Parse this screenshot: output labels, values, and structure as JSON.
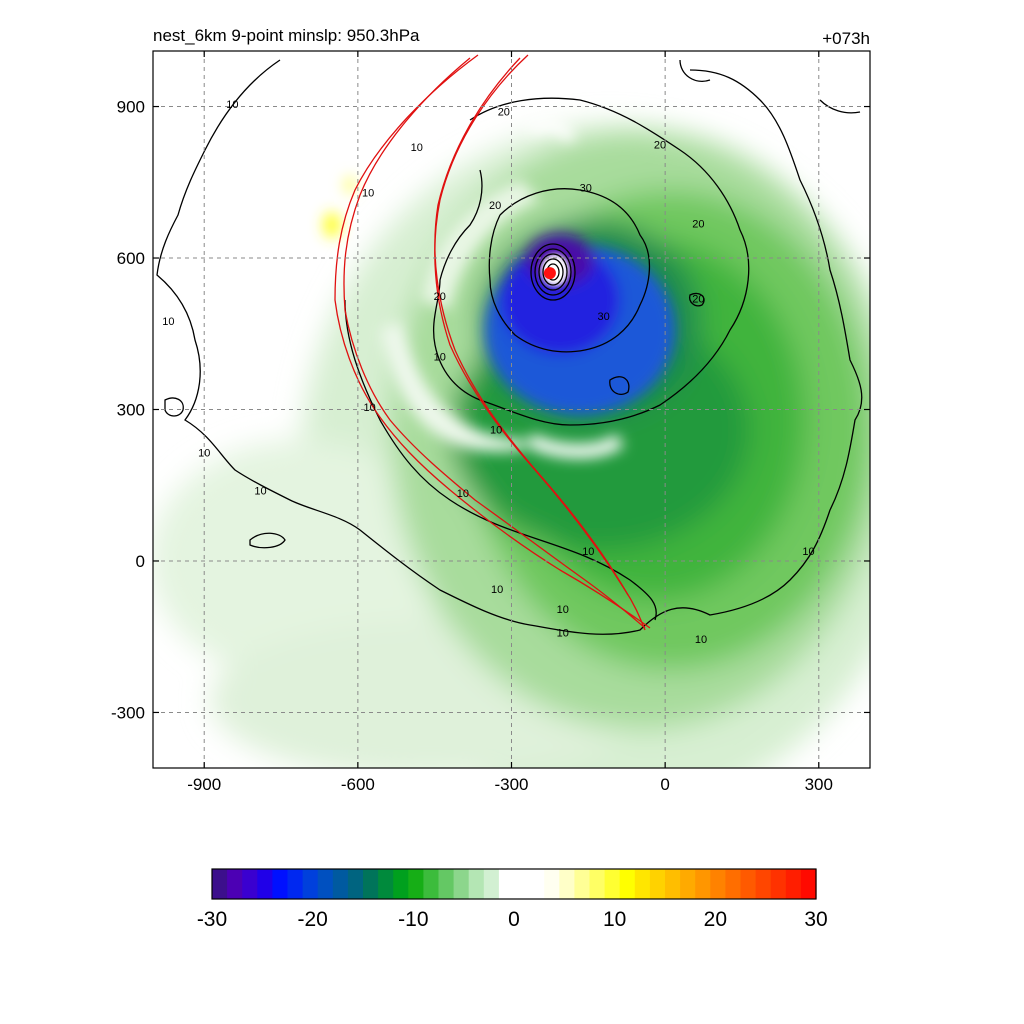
{
  "chart_data": {
    "type": "heatmap",
    "title_left": "nest_6km  9-point minslp: 950.3hPa",
    "title_right": "+073h",
    "xlim": [
      -1000,
      400
    ],
    "ylim": [
      -410,
      1010
    ],
    "x_ticks": [
      "-900",
      "-600",
      "-300",
      "0",
      "300"
    ],
    "x_tick_values": [
      -900,
      -600,
      -300,
      0,
      300
    ],
    "y_ticks": [
      "900",
      "600",
      "300",
      "0",
      "-300"
    ],
    "y_tick_values": [
      900,
      600,
      300,
      0,
      -300
    ],
    "grid": true,
    "colorbar": {
      "range": [
        -30,
        30
      ],
      "ticks": [
        "-30",
        "-20",
        "-10",
        "0",
        "10",
        "20",
        "30"
      ],
      "tick_values": [
        -30,
        -20,
        -10,
        0,
        10,
        20,
        30
      ],
      "placement": "bottom"
    },
    "center_marker": {
      "x": -225,
      "y": 570,
      "color": "#ff1010"
    },
    "contour_labels": [
      {
        "text": "10",
        "x": -845,
        "y": 905
      },
      {
        "text": "10",
        "x": -485,
        "y": 820
      },
      {
        "text": "10",
        "x": -580,
        "y": 730
      },
      {
        "text": "20",
        "x": -315,
        "y": 890
      },
      {
        "text": "20",
        "x": -10,
        "y": 825
      },
      {
        "text": "30",
        "x": -155,
        "y": 740
      },
      {
        "text": "20",
        "x": -332,
        "y": 705
      },
      {
        "text": "20",
        "x": 65,
        "y": 668
      },
      {
        "text": "20",
        "x": -440,
        "y": 525
      },
      {
        "text": "20",
        "x": 65,
        "y": 520
      },
      {
        "text": "30",
        "x": -120,
        "y": 485
      },
      {
        "text": "10",
        "x": -970,
        "y": 475
      },
      {
        "text": "10",
        "x": -440,
        "y": 405
      },
      {
        "text": "10",
        "x": -577,
        "y": 305
      },
      {
        "text": "10",
        "x": -330,
        "y": 260
      },
      {
        "text": "10",
        "x": -900,
        "y": 215
      },
      {
        "text": "10",
        "x": -790,
        "y": 140
      },
      {
        "text": "10",
        "x": -395,
        "y": 135
      },
      {
        "text": "10",
        "x": -150,
        "y": 20
      },
      {
        "text": "10",
        "x": 280,
        "y": 20
      },
      {
        "text": "10",
        "x": -328,
        "y": -55
      },
      {
        "text": "10",
        "x": -200,
        "y": -95
      },
      {
        "text": "10",
        "x": -200,
        "y": -142
      },
      {
        "text": "10",
        "x": 70,
        "y": -155
      }
    ]
  }
}
